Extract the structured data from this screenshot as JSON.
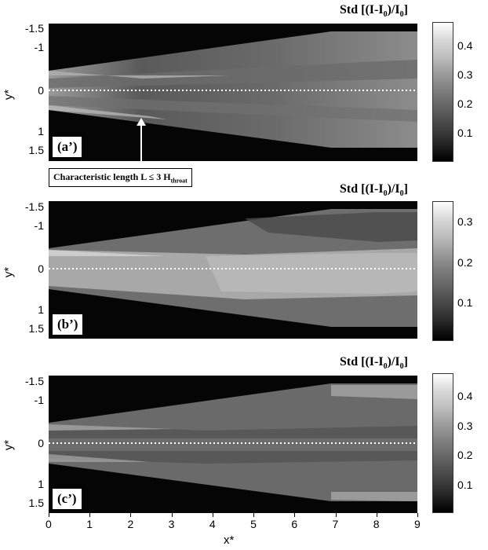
{
  "colorbar_title_parts": {
    "std": "Std [(I-I",
    "sub0": "0",
    "mid": ")/I",
    "sub1": "0",
    "end": "]"
  },
  "panels": [
    {
      "label": "(a’)",
      "cbar_ticks": [
        "0.4",
        "0.3",
        "0.2",
        "0.1"
      ],
      "cbar_max": 0.47
    },
    {
      "label": "(b’)",
      "cbar_ticks": [
        "0.3",
        "0.2",
        "0.1"
      ],
      "cbar_max": 0.34
    },
    {
      "label": "(c’)",
      "cbar_ticks": [
        "0.4",
        "0.3",
        "0.2",
        "0.1"
      ],
      "cbar_max": 0.47
    }
  ],
  "y_ticks": [
    "-1.5",
    "-1",
    "0",
    "1",
    "1.5"
  ],
  "y_label": "y*",
  "x_ticks": [
    "0",
    "1",
    "2",
    "3",
    "4",
    "5",
    "6",
    "7",
    "8",
    "9"
  ],
  "x_label": "x*",
  "annotation": {
    "text": "Characteristic length L ≤ 3 H",
    "sub": "throat"
  },
  "colors": {
    "background": "#000000",
    "dotted_line": "#ffffff"
  }
}
